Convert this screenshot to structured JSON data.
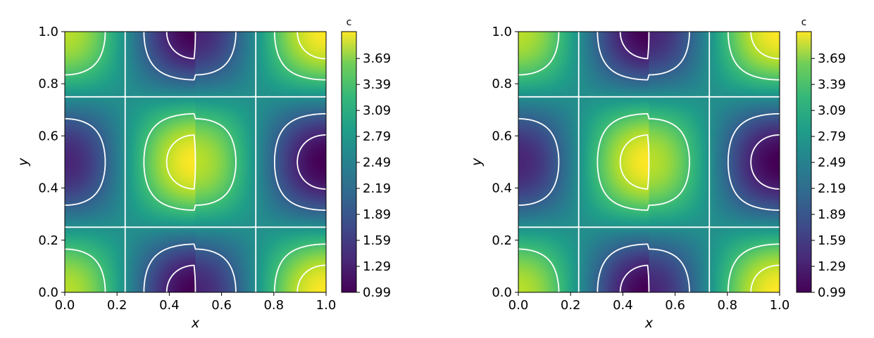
{
  "chart_data": [
    {
      "type": "heatmap",
      "title": "",
      "xlabel": "x",
      "ylabel": "y",
      "xlim": [
        0.0,
        1.0
      ],
      "ylim": [
        0.0,
        1.0
      ],
      "xticks": [
        "0.0",
        "0.2",
        "0.4",
        "0.6",
        "0.8",
        "1.0"
      ],
      "yticks": [
        "0.0",
        "0.2",
        "0.4",
        "0.6",
        "0.8",
        "1.0"
      ],
      "colorbar": {
        "label": "c",
        "min": 0.99,
        "max": 4.0,
        "ticks": [
          "0.99",
          "1.29",
          "1.59",
          "1.89",
          "2.19",
          "2.49",
          "2.79",
          "3.09",
          "3.39",
          "3.69"
        ],
        "colormap": "viridis"
      },
      "contour_levels": [
        1.29,
        1.89,
        2.49,
        3.09,
        3.69
      ],
      "contour_color": "#ffffff"
    },
    {
      "type": "heatmap",
      "title": "",
      "xlabel": "x",
      "ylabel": "y",
      "xlim": [
        0.0,
        1.0
      ],
      "ylim": [
        0.0,
        1.0
      ],
      "xticks": [
        "0.0",
        "0.2",
        "0.4",
        "0.6",
        "0.8",
        "1.0"
      ],
      "yticks": [
        "0.0",
        "0.2",
        "0.4",
        "0.6",
        "0.8",
        "1.0"
      ],
      "colorbar": {
        "label": "c",
        "min": 0.99,
        "max": 4.0,
        "ticks": [
          "0.99",
          "1.29",
          "1.59",
          "1.89",
          "2.19",
          "2.49",
          "2.79",
          "3.09",
          "3.39",
          "3.69"
        ],
        "colormap": "viridis"
      },
      "contour_levels": [
        1.29,
        1.89,
        2.49,
        3.09,
        3.69
      ],
      "contour_color": "#ffffff"
    }
  ],
  "colors": {
    "viridis_low": "#440154",
    "viridis_mid": "#21918c",
    "viridis_high": "#fde725",
    "contour": "#ffffff"
  }
}
